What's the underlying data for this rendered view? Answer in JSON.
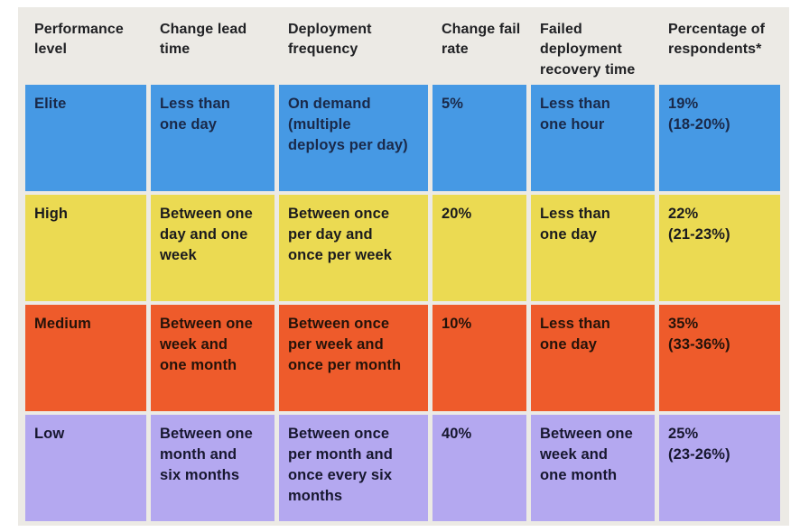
{
  "colors": {
    "page_bg": "#FFFFFF",
    "table_bg": "#ECEAE5",
    "header_text": "#202124",
    "elite_bg": "#4699E4",
    "high_bg": "#EBDA52",
    "medium_bg": "#EE5B2B",
    "low_bg": "#B4A8F0"
  },
  "chart_data": {
    "type": "table",
    "title": "",
    "columns": [
      "Performance level",
      "Change lead time",
      "Deployment frequency",
      "Change fail rate",
      "Failed deployment recovery time",
      "Percentage of respondents*"
    ],
    "rows": [
      [
        "Elite",
        "Less than one day",
        "On demand (multiple deploys per day)",
        "5%",
        "Less than one hour",
        "19% (18-20%)"
      ],
      [
        "High",
        "Between one day and one week",
        "Between once per day and once per week",
        "20%",
        "Less than one day",
        "22% (21-23%)"
      ],
      [
        "Medium",
        "Between one week and one month",
        "Between once per week and once per month",
        "10%",
        "Less than one day",
        "35% (33-36%)"
      ],
      [
        "Low",
        "Between one month and six months",
        "Between once per month and once every six months",
        "40%",
        "Between one week and one month",
        "25% (23-26%)"
      ]
    ],
    "row_colors": [
      "#4699E4",
      "#EBDA52",
      "#EE5B2B",
      "#B4A8F0"
    ],
    "change_fail_rate_values_pct": [
      5,
      20,
      10,
      40
    ],
    "percentage_of_respondents_pct": [
      19,
      22,
      35,
      25
    ]
  },
  "display": {
    "headers": [
      "Performance\nlevel",
      "Change lead\ntime",
      "Deployment\nfrequency",
      "Change fail\nrate",
      "Failed\ndeployment\nrecovery time",
      "Percentage of\nrespondents*"
    ],
    "rows": [
      {
        "bg": "#4699E4",
        "fg": "#1A2949",
        "cells": [
          "Elite",
          "Less than\none day",
          "On demand\n(multiple\ndeploys per day)",
          "5%",
          "Less than\none hour",
          "19%\n(18-20%)"
        ]
      },
      {
        "bg": "#EBDA52",
        "fg": "#1B1B1E",
        "cells": [
          "High",
          "Between one\nday and one\nweek",
          "Between once\nper day and\nonce per week",
          "20%",
          "Less than\none day",
          "22%\n(21-23%)"
        ]
      },
      {
        "bg": "#EE5B2B",
        "fg": "#24130A",
        "cells": [
          "Medium",
          "Between one\nweek and\none month",
          "Between once\nper week and\nonce per month",
          "10%",
          "Less than\none day",
          "35%\n(33-36%)"
        ]
      },
      {
        "bg": "#B4A8F0",
        "fg": "#17172F",
        "cells": [
          "Low",
          "Between one\nmonth and\nsix months",
          "Between once\nper month and\nonce every six\nmonths",
          "40%",
          "Between one\nweek and\none month",
          "25%\n(23-26%)"
        ]
      }
    ]
  }
}
